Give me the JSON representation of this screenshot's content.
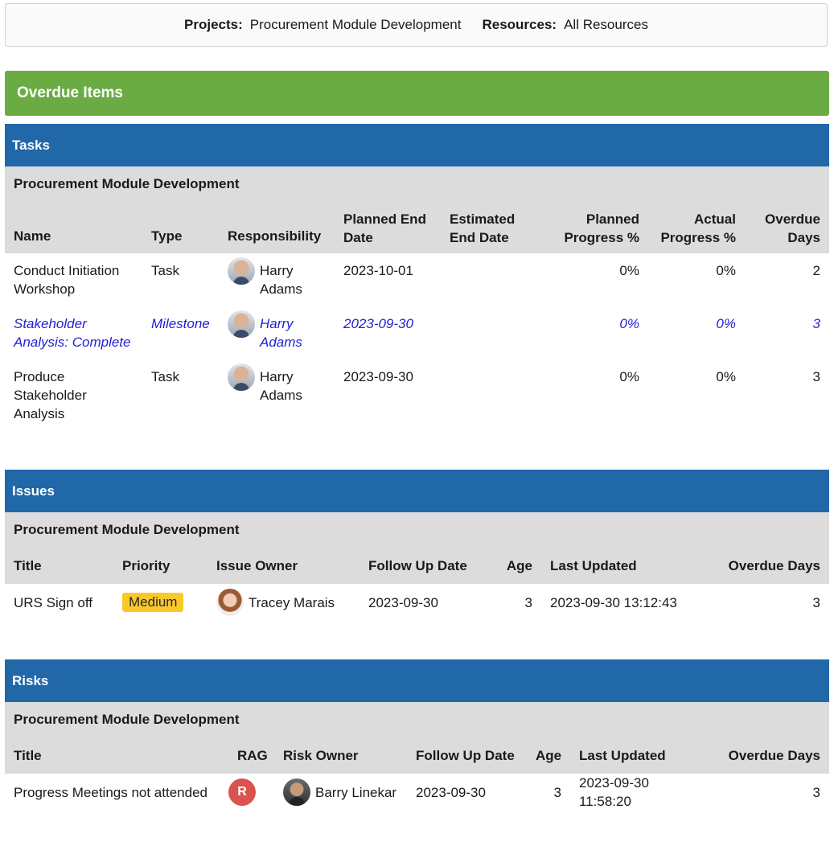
{
  "filters": {
    "projects_label": "Projects:",
    "projects_value": "Procurement Module Development",
    "resources_label": "Resources:",
    "resources_value": "All Resources"
  },
  "banner": "Overdue Items",
  "tasks": {
    "title": "Tasks",
    "project": "Procurement Module Development",
    "columns": [
      "Name",
      "Type",
      "Responsibility",
      "Planned End Date",
      "Estimated End Date",
      "Planned Progress %",
      "Actual Progress %",
      "Overdue Days"
    ],
    "rows": [
      {
        "name": "Conduct Initiation Workshop",
        "type": "Task",
        "responsibility": "Harry Adams",
        "planned_end": "2023-10-01",
        "estimated_end": "",
        "planned_progress": "0%",
        "actual_progress": "0%",
        "overdue_days": "2"
      },
      {
        "name": "Stakeholder Analysis: Complete",
        "type": "Milestone",
        "responsibility": "Harry Adams",
        "planned_end": "2023-09-30",
        "estimated_end": "",
        "planned_progress": "0%",
        "actual_progress": "0%",
        "overdue_days": "3"
      },
      {
        "name": "Produce Stakeholder Analysis",
        "type": "Task",
        "responsibility": "Harry Adams",
        "planned_end": "2023-09-30",
        "estimated_end": "",
        "planned_progress": "0%",
        "actual_progress": "0%",
        "overdue_days": "3"
      }
    ]
  },
  "issues": {
    "title": "Issues",
    "project": "Procurement Module Development",
    "columns": [
      "Title",
      "Priority",
      "Issue Owner",
      "Follow Up Date",
      "Age",
      "Last Updated",
      "Overdue Days"
    ],
    "rows": [
      {
        "title": "URS Sign off",
        "priority": "Medium",
        "owner": "Tracey Marais",
        "follow_up": "2023-09-30",
        "age": "3",
        "last_updated": "2023-09-30 13:12:43",
        "overdue_days": "3"
      }
    ]
  },
  "risks": {
    "title": "Risks",
    "project": "Procurement Module Development",
    "columns": [
      "Title",
      "RAG",
      "Risk Owner",
      "Follow Up Date",
      "Age",
      "Last Updated",
      "Overdue Days"
    ],
    "rows": [
      {
        "title": "Progress Meetings not attended",
        "rag": "R",
        "owner": "Barry Linekar",
        "follow_up": "2023-09-30",
        "age": "3",
        "last_updated": "2023-09-30 11:58:20",
        "overdue_days": "3"
      }
    ]
  },
  "colors": {
    "banner_green": "#6aac43",
    "section_blue": "#2168a9",
    "milestone_blue": "#1f1fd6",
    "priority_medium": "#f9c92c",
    "rag_red": "#d9534f"
  }
}
